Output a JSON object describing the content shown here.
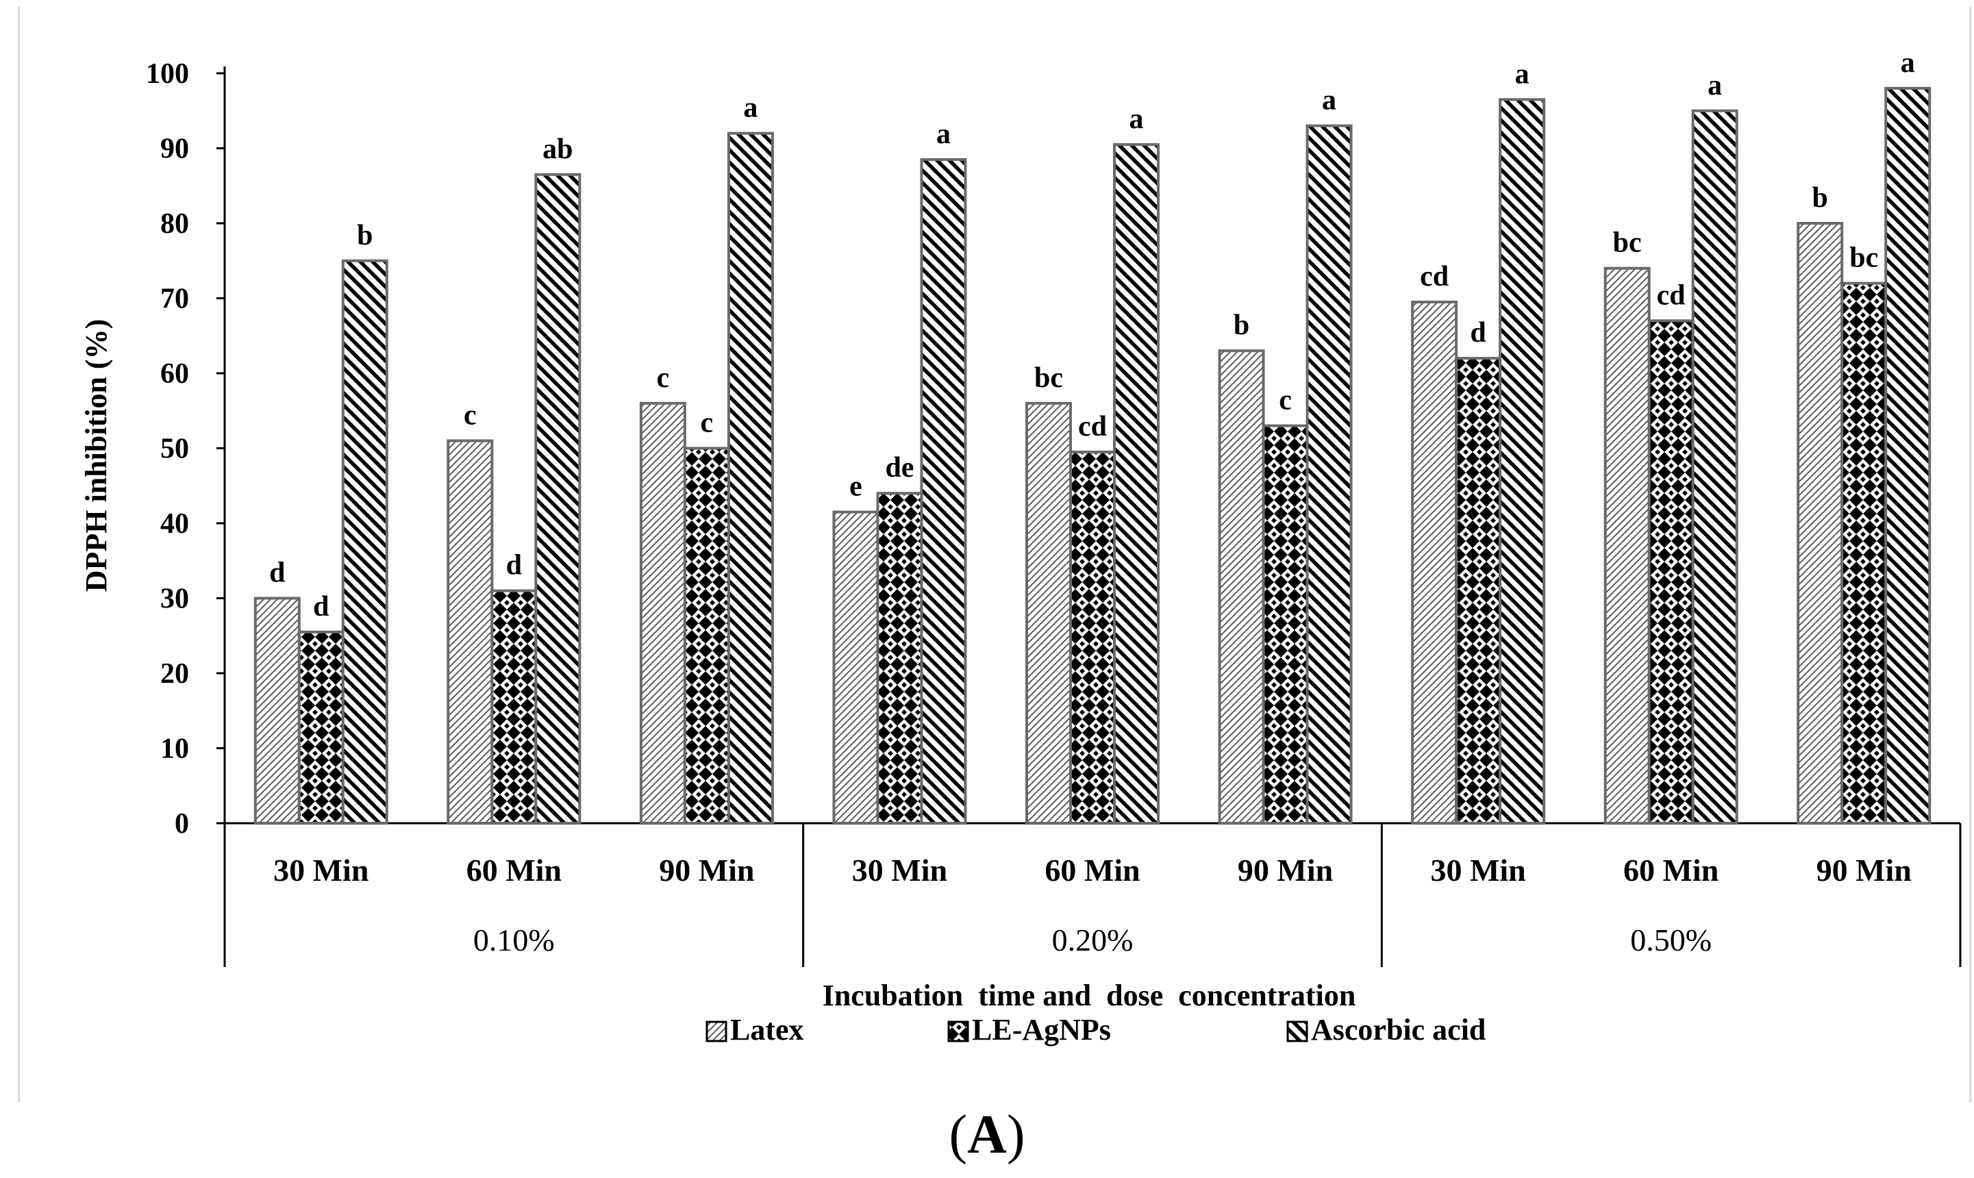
{
  "panel_label": {
    "open": "(",
    "letter": "A",
    "close": ")"
  },
  "chart_data": {
    "type": "bar",
    "title": "",
    "ylabel": "DPPH inhibition (%)",
    "xlabel": "Incubation  time and  dose  concentration",
    "ylim": [
      0,
      100
    ],
    "yticks": [
      0,
      10,
      20,
      30,
      40,
      50,
      60,
      70,
      80,
      90,
      100
    ],
    "grid": false,
    "legend_position": "bottom",
    "groups": [
      {
        "label": "0.10%",
        "categories": [
          "30 Min",
          "60 Min",
          "90 Min"
        ]
      },
      {
        "label": "0.20%",
        "categories": [
          "30 Min",
          "60 Min",
          "90 Min"
        ]
      },
      {
        "label": "0.50%",
        "categories": [
          "30 Min",
          "60 Min",
          "90 Min"
        ]
      }
    ],
    "series": [
      {
        "name": "Latex",
        "pattern": "diag-fine",
        "values": [
          30,
          51,
          56,
          41.5,
          56,
          63,
          69.5,
          74,
          80
        ],
        "letters": [
          "d",
          "c",
          "c",
          "e",
          "bc",
          "b",
          "cd",
          "bc",
          "b"
        ]
      },
      {
        "name": "LE-AgNPs",
        "pattern": "checker",
        "values": [
          25.5,
          31,
          50,
          44,
          49.5,
          53,
          62,
          67,
          72
        ],
        "letters": [
          "d",
          "d",
          "c",
          "de",
          "cd",
          "c",
          "d",
          "cd",
          "bc"
        ]
      },
      {
        "name": "Ascorbic acid",
        "pattern": "diag-bold",
        "values": [
          75,
          86.5,
          92,
          88.5,
          90.5,
          93,
          96.5,
          95,
          98
        ],
        "letters": [
          "b",
          "ab",
          "a",
          "a",
          "a",
          "a",
          "a",
          "a",
          "a"
        ]
      }
    ]
  }
}
